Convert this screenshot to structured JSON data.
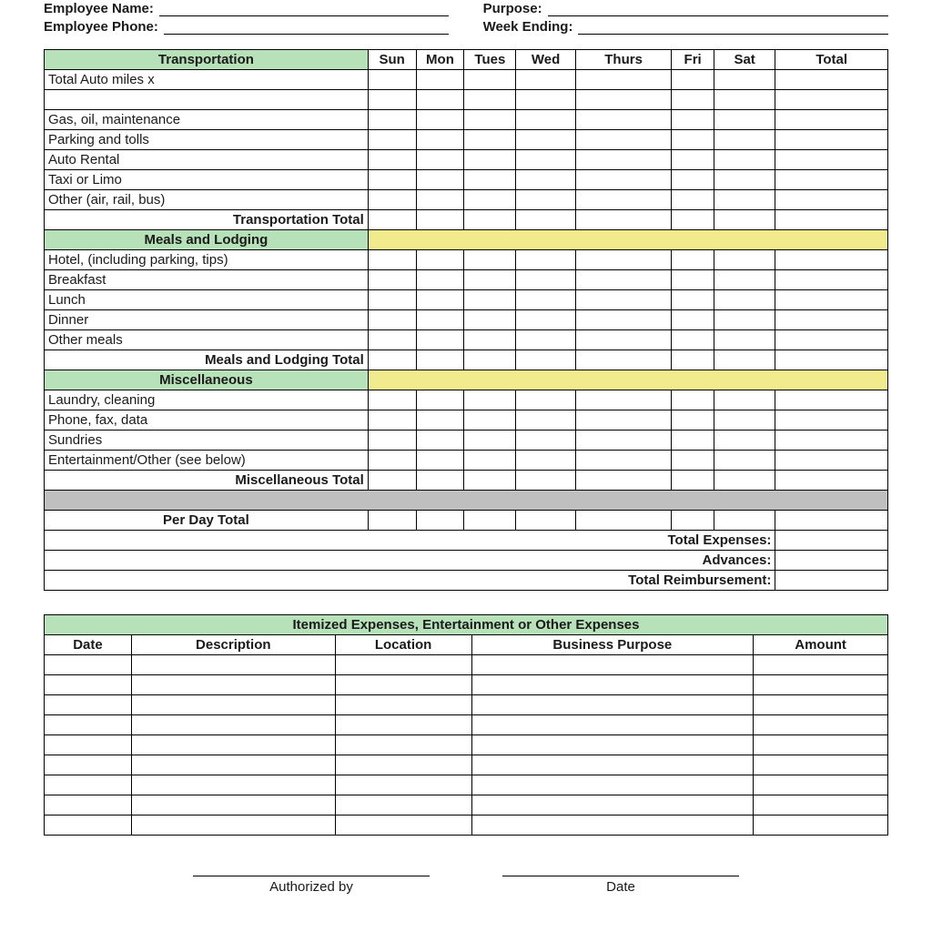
{
  "colors": {
    "section_header_bg": "#b7e1b8",
    "highlight_row_bg": "#f2eb8d",
    "divider_row_bg": "#bfbfbf",
    "border": "#000000",
    "page_bg": "#ffffff",
    "text": "#1a1a1a"
  },
  "header": {
    "employee_name_label": "Employee Name:",
    "employee_phone_label": "Employee Phone:",
    "purpose_label": "Purpose:",
    "week_ending_label": "Week Ending:"
  },
  "main_table": {
    "days": [
      "Sun",
      "Mon",
      "Tues",
      "Wed",
      "Thurs",
      "Fri",
      "Sat",
      "Total"
    ],
    "sections": {
      "transportation": {
        "title": "Transportation",
        "rows": [
          "Total Auto miles x",
          "",
          "Gas, oil, maintenance",
          "Parking and tolls",
          "Auto Rental",
          "Taxi or Limo",
          "Other (air, rail, bus)"
        ],
        "total_label": "Transportation Total"
      },
      "meals": {
        "title": "Meals and Lodging",
        "rows": [
          "Hotel, (including parking, tips)",
          "Breakfast",
          "Lunch",
          "Dinner",
          "Other meals"
        ],
        "total_label": "Meals and Lodging Total"
      },
      "misc": {
        "title": "Miscellaneous",
        "rows": [
          "Laundry, cleaning",
          "Phone, fax, data",
          "Sundries",
          "Entertainment/Other  (see below)"
        ],
        "total_label": "Miscellaneous Total"
      }
    },
    "per_day_total": "Per Day Total",
    "summary": {
      "total_expenses": "Total Expenses:",
      "advances": "Advances:",
      "total_reimbursement": "Total Reimbursement:"
    }
  },
  "itemized": {
    "title": "Itemized Expenses, Entertainment or Other Expenses",
    "columns": [
      "Date",
      "Description",
      "Location",
      "Business Purpose",
      "Amount"
    ],
    "blank_rows": 9
  },
  "signatures": {
    "authorized_by": "Authorized by",
    "date": "Date"
  }
}
